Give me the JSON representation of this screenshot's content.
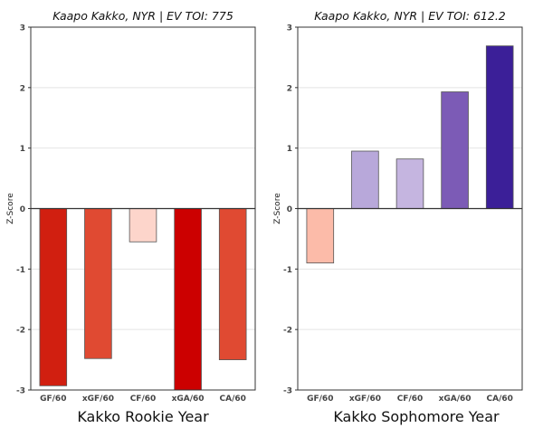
{
  "chart_data": [
    {
      "type": "bar",
      "title": "Kaapo Kakko, NYR  |  EV TOI: 775",
      "caption": "Kakko Rookie Year",
      "xlabel": "",
      "ylabel": "Z-Score",
      "ylim": [
        -3,
        3
      ],
      "yticks": [
        "-3",
        "-2",
        "-1",
        "0",
        "1",
        "2",
        "3"
      ],
      "grid": true,
      "categories": [
        "GF/60",
        "xGF/60",
        "CF/60",
        "xGA/60",
        "CA/60"
      ],
      "values": [
        -2.93,
        -2.48,
        -0.55,
        -3.0,
        -2.5
      ],
      "colors": [
        "#d11f10",
        "#e04a32",
        "#fdd5cb",
        "#cc0000",
        "#e04a32"
      ]
    },
    {
      "type": "bar",
      "title": "Kaapo Kakko, NYR  |  EV TOI: 612.2",
      "caption": "Kakko Sophomore Year",
      "xlabel": "",
      "ylabel": "Z-Score",
      "ylim": [
        -3,
        3
      ],
      "yticks": [
        "-3",
        "-2",
        "-1",
        "0",
        "1",
        "2",
        "3"
      ],
      "grid": true,
      "categories": [
        "GF/60",
        "xGF/60",
        "CF/60",
        "xGA/60",
        "CA/60"
      ],
      "values": [
        -0.9,
        0.95,
        0.82,
        1.93,
        2.69
      ],
      "colors": [
        "#fcbba9",
        "#b8a8da",
        "#c5b5e0",
        "#7c5bb6",
        "#3b1f98"
      ]
    }
  ]
}
